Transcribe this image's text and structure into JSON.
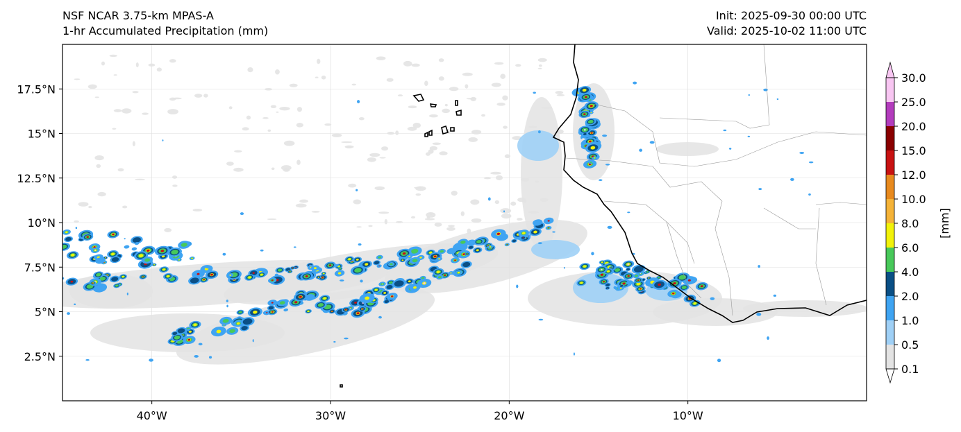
{
  "header": {
    "model": "NSF NCAR 3.75-km MPAS-A",
    "field": "1-hr Accumulated Precipitation (mm)",
    "init": "Init: 2025-09-30 00:00 UTC",
    "valid": "Valid: 2025-10-02 11:00 UTC"
  },
  "map": {
    "lon_range": [
      -45,
      0
    ],
    "lat_range": [
      0,
      20
    ],
    "lat_ticks": [
      {
        "value": 2.5,
        "label": "2.5°N"
      },
      {
        "value": 5,
        "label": "5°N"
      },
      {
        "value": 7.5,
        "label": "7.5°N"
      },
      {
        "value": 10,
        "label": "10°N"
      },
      {
        "value": 12.5,
        "label": "12.5°N"
      },
      {
        "value": 15,
        "label": "15°N"
      },
      {
        "value": 17.5,
        "label": "17.5°N"
      }
    ],
    "lon_ticks": [
      {
        "value": -40,
        "label": "40°W"
      },
      {
        "value": -30,
        "label": "30°W"
      },
      {
        "value": -20,
        "label": "20°W"
      },
      {
        "value": -10,
        "label": "10°W"
      }
    ],
    "gridlines": true
  },
  "colorbar": {
    "unit_label": "[mm]",
    "levels": [
      "0.1",
      "0.5",
      "1.0",
      "2.0",
      "4.0",
      "6.0",
      "8.0",
      "10.0",
      "12.0",
      "15.0",
      "20.0",
      "25.0",
      "30.0"
    ],
    "colors": [
      "#e3e3e3",
      "#9fd0f6",
      "#3fa4f2",
      "#0a4f85",
      "#48c95a",
      "#f2f20a",
      "#f5b338",
      "#e88a1e",
      "#c81212",
      "#8a0000",
      "#b33cbd",
      "#f8c6f2"
    ],
    "extend": "both"
  },
  "precip_colors": {
    "light": "#e3e3e3",
    "very_light_blue": "#9fd0f6",
    "blue": "#3fa4f2",
    "dark_blue": "#0a4f85",
    "green": "#48c95a",
    "yellow": "#f2f20a",
    "red": "#c81212",
    "pink": "#f8c6f2"
  }
}
